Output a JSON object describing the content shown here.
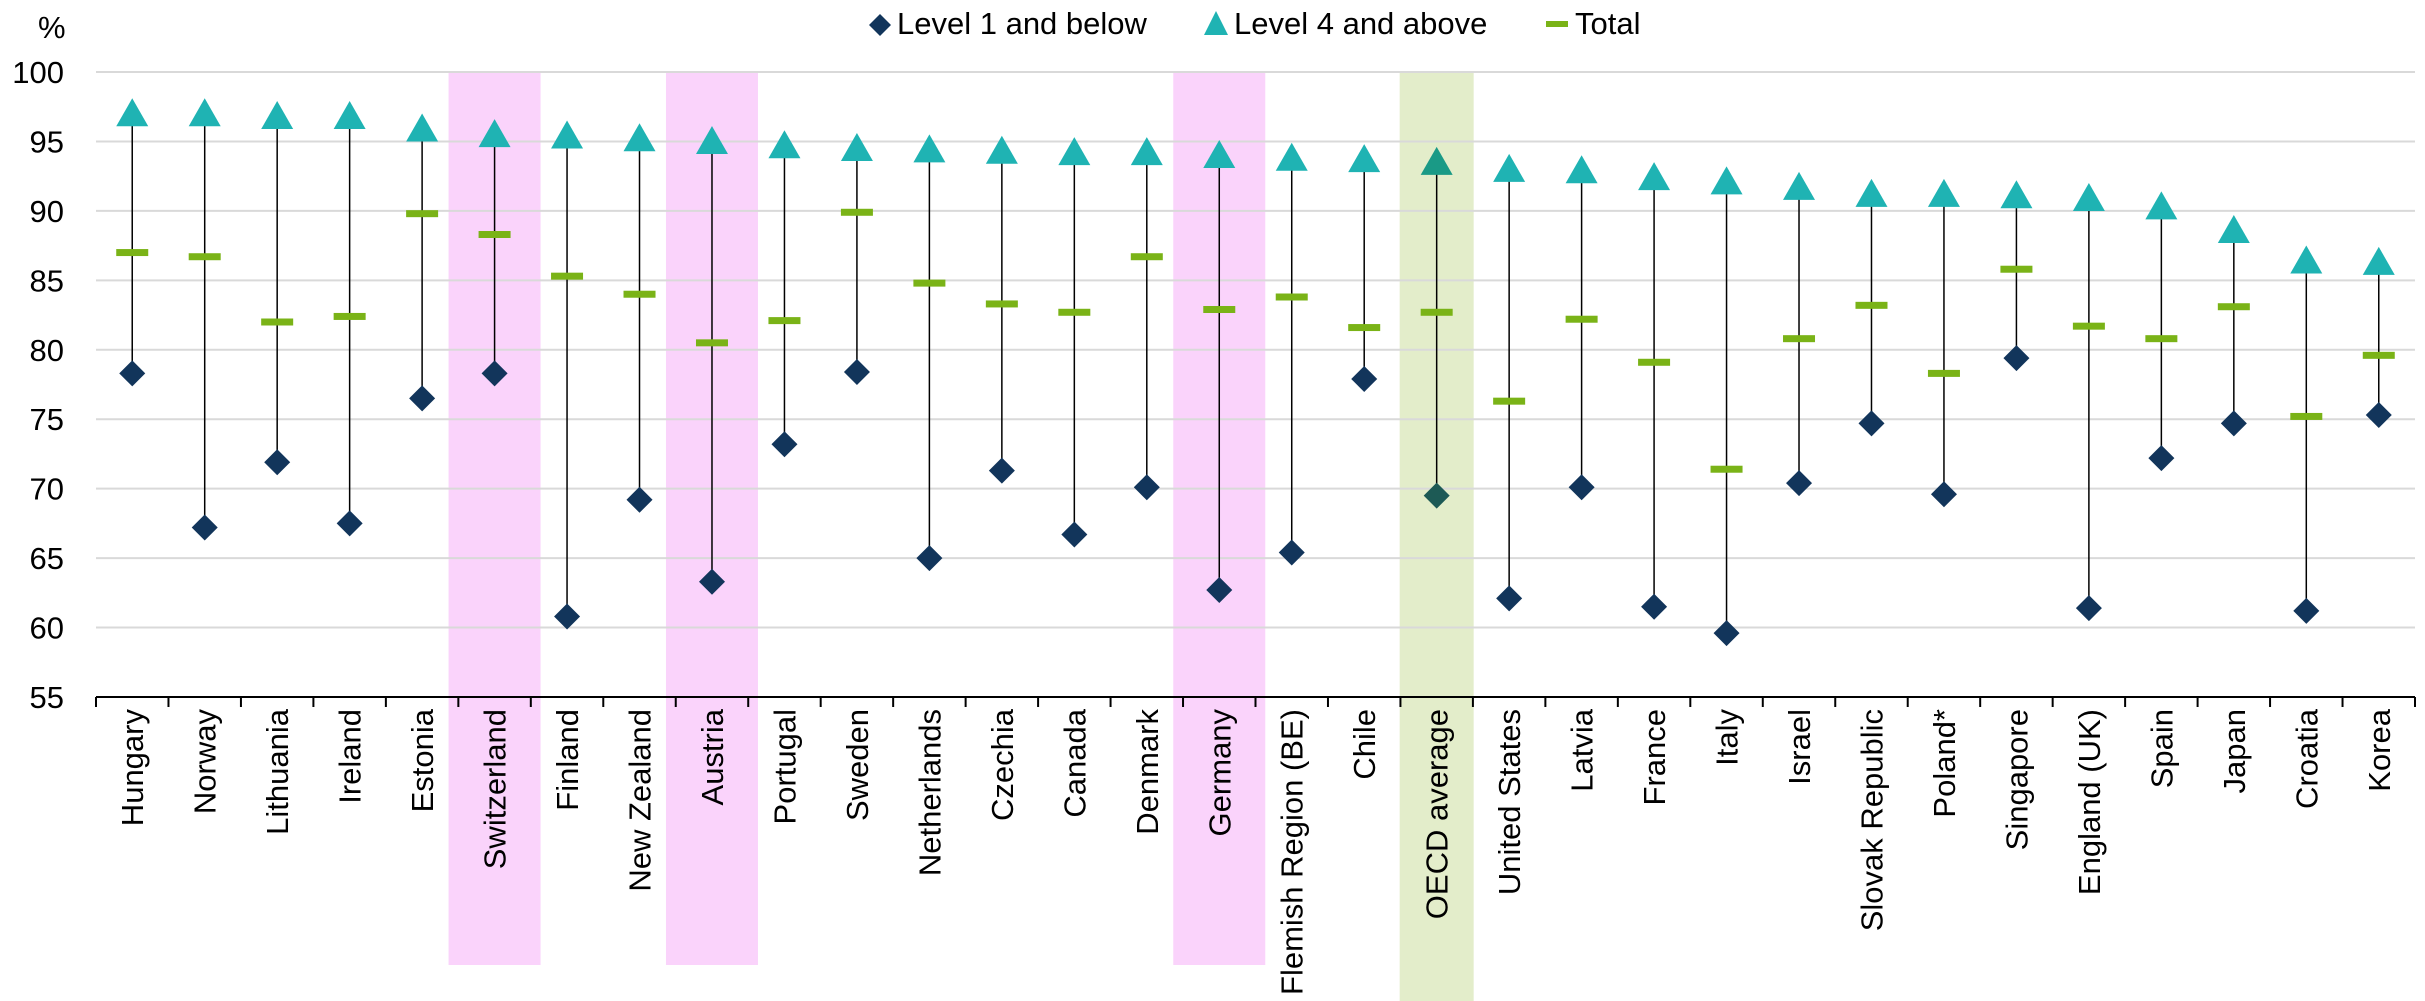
{
  "chart_data": {
    "type": "scatter",
    "ylabel": "%",
    "ylim": [
      55,
      100
    ],
    "yticks": [
      55,
      60,
      65,
      70,
      75,
      80,
      85,
      90,
      95,
      100
    ],
    "grid": true,
    "legend_position": "top-center",
    "categories": [
      "Hungary",
      "Norway",
      "Lithuania",
      "Ireland",
      "Estonia",
      "Switzerland",
      "Finland",
      "New Zealand",
      "Austria",
      "Portugal",
      "Sweden",
      "Netherlands",
      "Czechia",
      "Canada",
      "Denmark",
      "Germany",
      "Flemish Region (BE)",
      "Chile",
      "OECD average",
      "United States",
      "Latvia",
      "France",
      "Italy",
      "Israel",
      "Slovak Republic",
      "Poland*",
      "Singapore",
      "England (UK)",
      "Spain",
      "Japan",
      "Croatia",
      "Korea"
    ],
    "highlighted": {
      "pink": [
        "Switzerland",
        "Austria",
        "Germany"
      ],
      "green": [
        "OECD average"
      ]
    },
    "series": [
      {
        "name": "Level 1 and below",
        "marker": "diamond",
        "color": "#12355b",
        "values": [
          78.3,
          67.2,
          71.9,
          67.5,
          76.5,
          78.3,
          60.8,
          69.2,
          63.3,
          73.2,
          78.4,
          65.0,
          71.3,
          66.7,
          70.1,
          62.7,
          65.4,
          77.9,
          69.5,
          62.1,
          70.1,
          61.5,
          59.6,
          70.4,
          74.7,
          69.6,
          79.4,
          61.4,
          72.2,
          74.7,
          61.2,
          75.3
        ]
      },
      {
        "name": "Level 4 and above",
        "marker": "triangle",
        "color": "#1fb3b3",
        "values": [
          97.1,
          97.1,
          96.9,
          96.9,
          96.0,
          95.6,
          95.5,
          95.3,
          95.1,
          94.8,
          94.6,
          94.5,
          94.4,
          94.3,
          94.3,
          94.1,
          93.9,
          93.8,
          93.6,
          93.1,
          93.0,
          92.5,
          92.2,
          91.8,
          91.3,
          91.3,
          91.2,
          91.0,
          90.4,
          88.7,
          86.5,
          86.4
        ]
      },
      {
        "name": "Total",
        "marker": "dash",
        "color": "#7ab317",
        "values": [
          87.0,
          86.7,
          82.0,
          82.4,
          89.8,
          88.3,
          85.3,
          84.0,
          80.5,
          82.1,
          89.9,
          84.8,
          83.3,
          82.7,
          86.7,
          82.9,
          83.8,
          81.6,
          82.7,
          76.3,
          82.2,
          79.1,
          71.4,
          80.8,
          83.2,
          78.3,
          85.8,
          81.7,
          80.8,
          83.1,
          75.2,
          79.6
        ]
      }
    ],
    "colors": {
      "level1": "#12355b",
      "level4": "#1fb3b3",
      "level4_oecd": "#1a9a86",
      "level1_oecd": "#1d5a55",
      "total": "#7ab317",
      "highlight_pink": "#fad3fb",
      "highlight_green": "#e3edca",
      "grid": "#d9d9d9",
      "axis": "#000000",
      "range_line": "#000000"
    }
  }
}
